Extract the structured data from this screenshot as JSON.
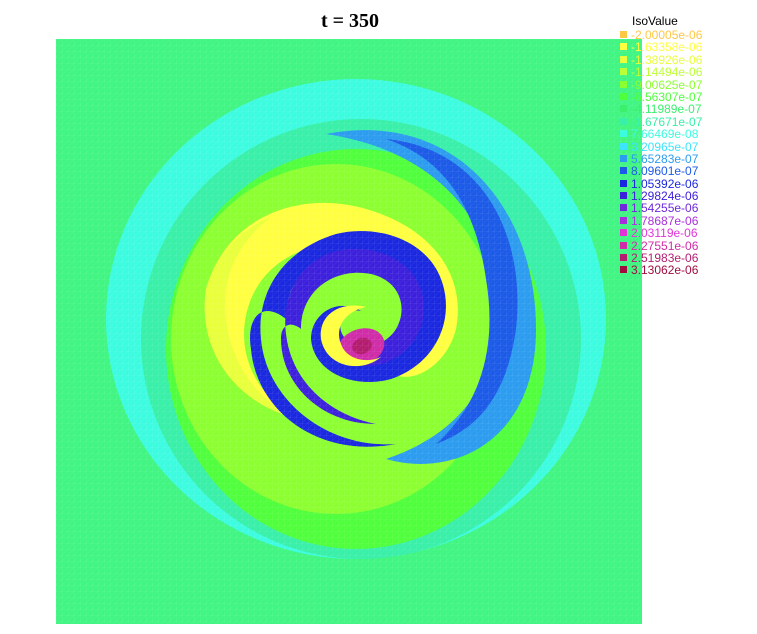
{
  "title": "t = 350",
  "legend": {
    "title": "IsoValue",
    "items": [
      {
        "label": "-2.00005e-06",
        "color": "#ffc844"
      },
      {
        "label": "-1.63358e-06",
        "color": "#ffff40"
      },
      {
        "label": "-1.38926e-06",
        "color": "#e8ff3a"
      },
      {
        "label": "-1.14494e-06",
        "color": "#bcff36"
      },
      {
        "label": "-9.00625e-07",
        "color": "#8cff30"
      },
      {
        "label": "-6.56307e-07",
        "color": "#50ff3c"
      },
      {
        "label": "-4.11989e-07",
        "color": "#3cf06e"
      },
      {
        "label": "-1.67671e-07",
        "color": "#38f0a8"
      },
      {
        "label": "7.66469e-08",
        "color": "#3cfce0"
      },
      {
        "label": "3.20965e-07",
        "color": "#3ce4ff"
      },
      {
        "label": "5.65283e-07",
        "color": "#2c9cf0"
      },
      {
        "label": "8.09601e-07",
        "color": "#1c5ae8"
      },
      {
        "label": "1.05392e-06",
        "color": "#1a28e0"
      },
      {
        "label": "1.29824e-06",
        "color": "#3c20dc"
      },
      {
        "label": "1.54255e-06",
        "color": "#7028dc"
      },
      {
        "label": "1.78687e-06",
        "color": "#a830dc"
      },
      {
        "label": "2.03119e-06",
        "color": "#e034d8"
      },
      {
        "label": "2.27551e-06",
        "color": "#d02ca8"
      },
      {
        "label": "2.51983e-06",
        "color": "#b41c70"
      },
      {
        "label": "3.13062e-06",
        "color": "#a00c40"
      }
    ]
  }
}
